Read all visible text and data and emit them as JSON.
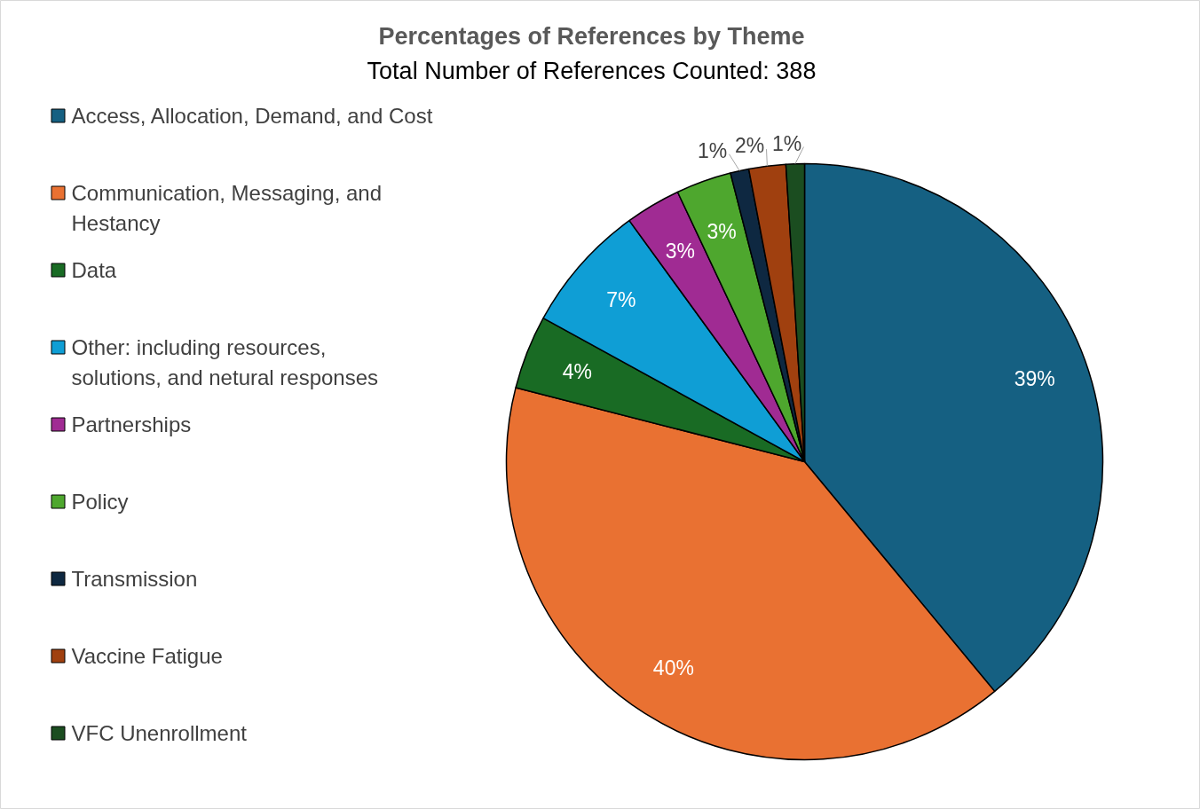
{
  "chart_data": {
    "type": "pie",
    "title": "Percentages of References by Theme",
    "subtitle": "Total Number of References Counted: 388",
    "categories": [
      "Access, Allocation, Demand, and Cost",
      "Communication, Messaging, and Hestancy",
      "Data",
      "Other:  including resources, solutions, and netural responses",
      "Partnerships",
      "Policy",
      "Transmission",
      "Vaccine Fatigue",
      "VFC Unenrollment"
    ],
    "values": [
      39,
      40,
      4,
      7,
      3,
      3,
      1,
      2,
      1
    ],
    "colors": [
      "#156082",
      "#e97132",
      "#196b24",
      "#0f9ed5",
      "#a02b93",
      "#4ea72e",
      "#0e2841",
      "#a0400f",
      "#1b4d20"
    ],
    "data_labels": true,
    "value_labels": [
      "39%",
      "40%",
      "4%",
      "7%",
      "3%",
      "3%",
      "1%",
      "2%",
      "1%"
    ],
    "legend": "left"
  }
}
